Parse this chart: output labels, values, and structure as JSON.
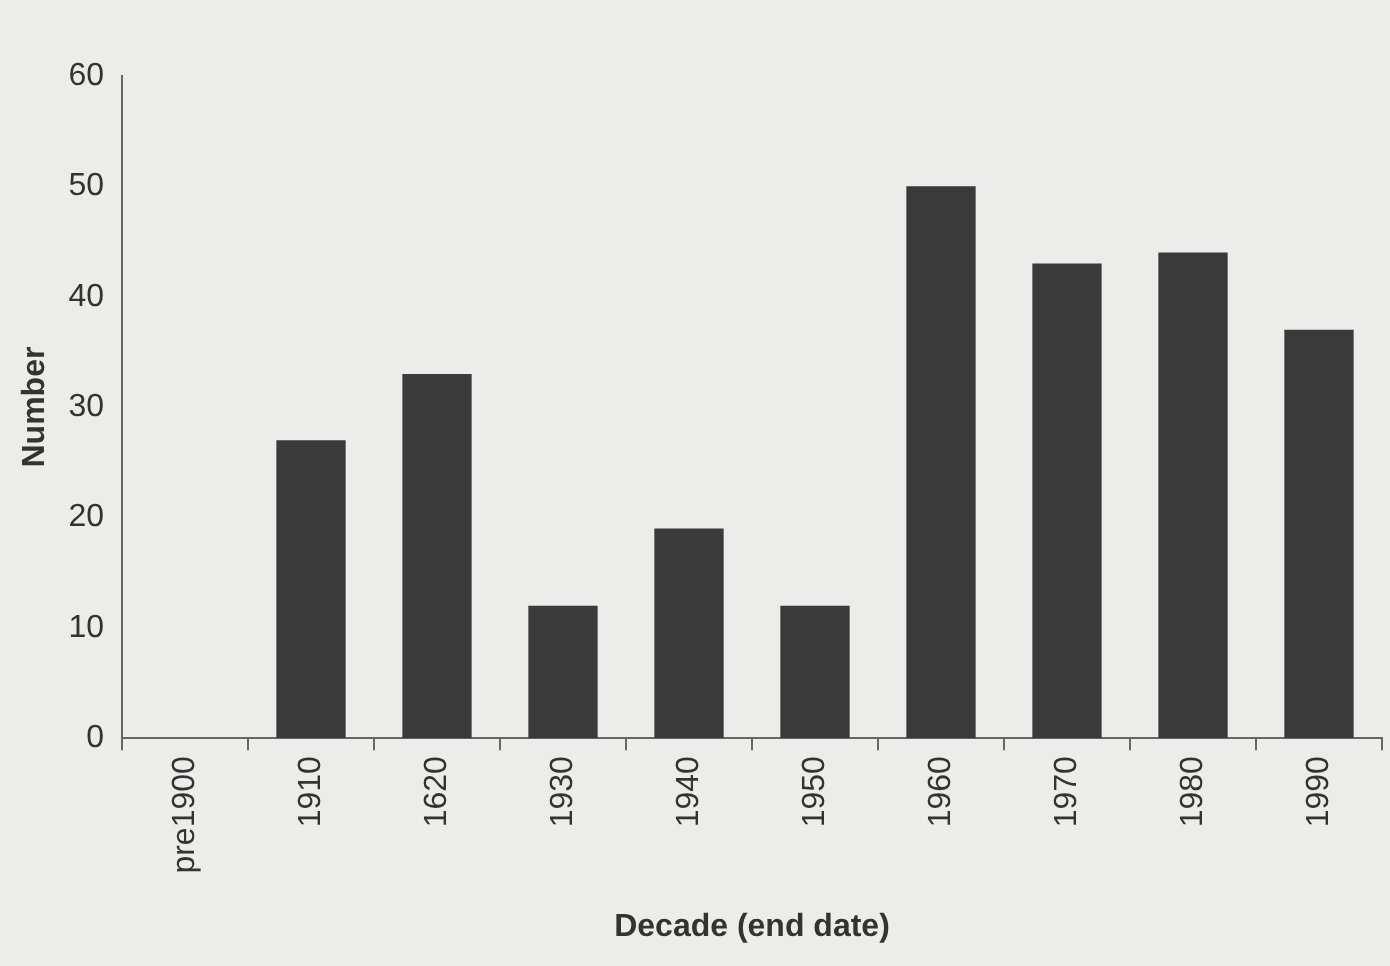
{
  "chart_data": {
    "type": "bar",
    "xlabel": "Decade (end date)",
    "ylabel": "Number",
    "categories": [
      "pre1900",
      "1910",
      "1620",
      "1930",
      "1940",
      "1950",
      "1960",
      "1970",
      "1980",
      "1990"
    ],
    "values": [
      0,
      27,
      33,
      12,
      19,
      12,
      50,
      43,
      44,
      37
    ],
    "color": "#3a3a3a",
    "ylim": [
      0,
      60
    ],
    "yticks": [
      0,
      10,
      20,
      30,
      40,
      50,
      60
    ],
    "grid": false,
    "legend": false
  }
}
